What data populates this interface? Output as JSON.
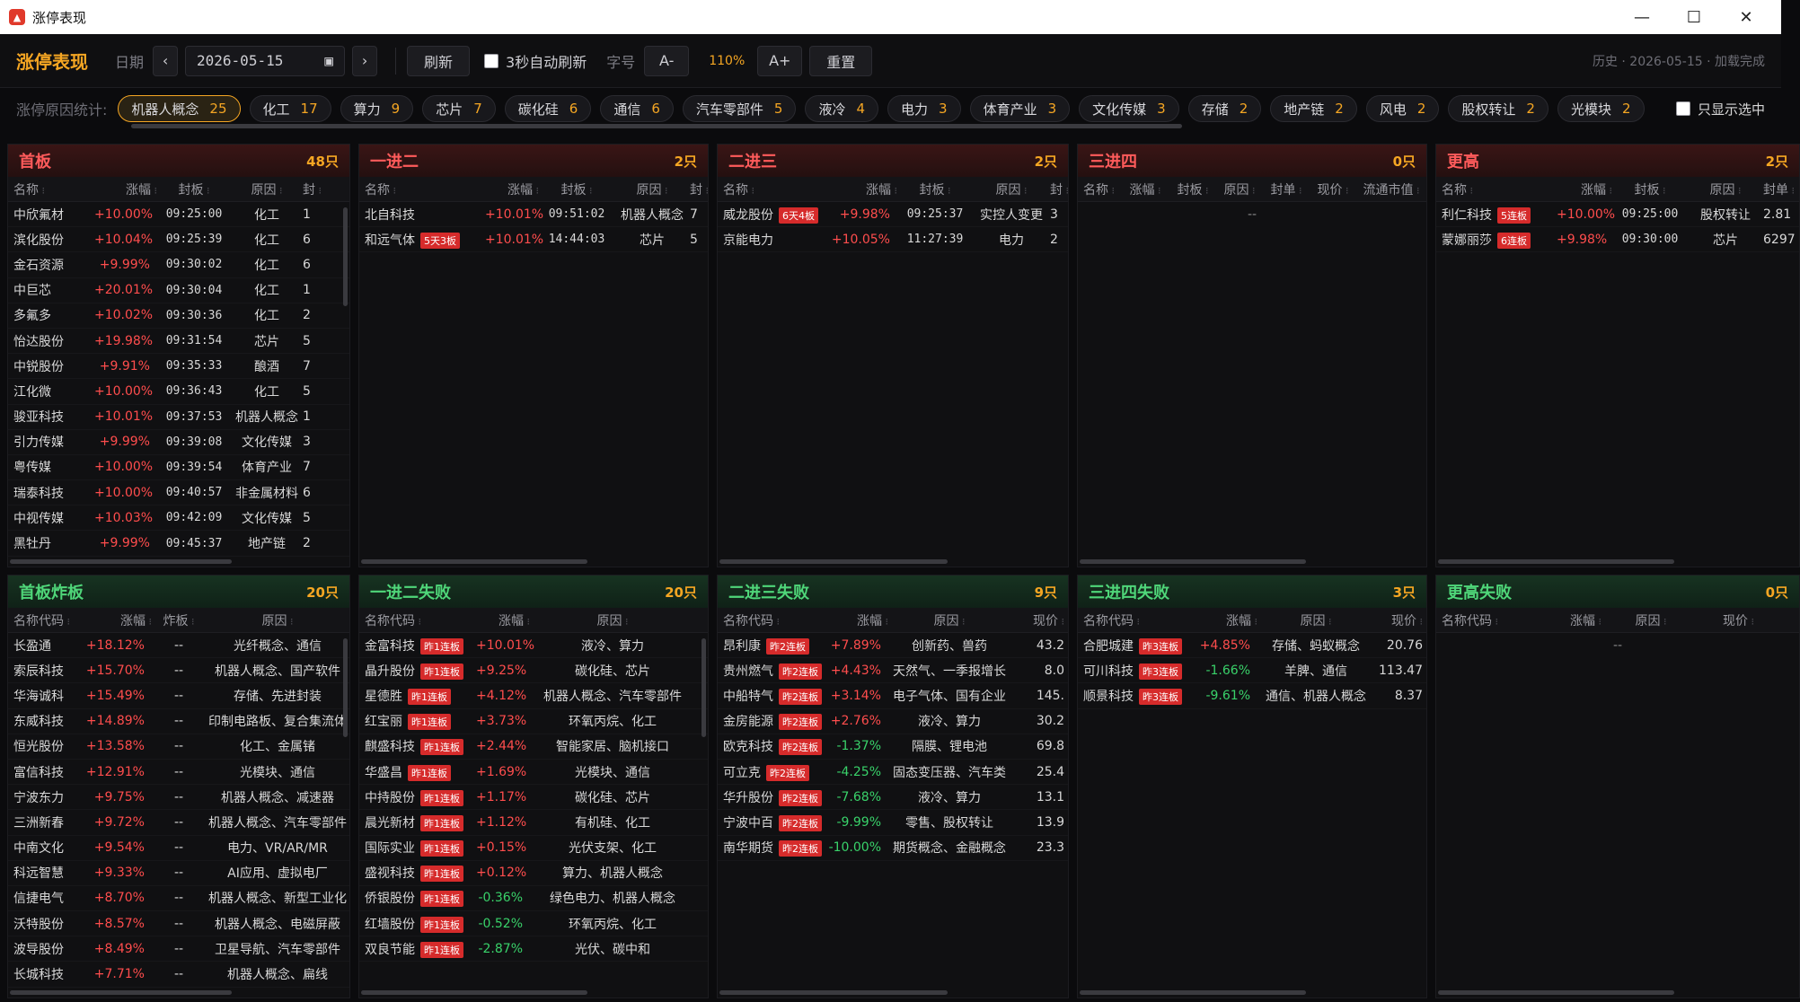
{
  "window": {
    "title": "涨停表现",
    "min": "—",
    "max": "☐",
    "close": "✕"
  },
  "toolbar": {
    "brand": "涨停表现",
    "date_label": "日期",
    "prev": "‹",
    "date": "2026-05-15",
    "next": "›",
    "refresh": "刷新",
    "auto_refresh": "3秒自动刷新",
    "font_label": "字号",
    "font_minus": "A-",
    "zoom": "110%",
    "font_plus": "A+",
    "reset": "重置",
    "history": "历史 · 2026-05-15 · 加载完成"
  },
  "reasons": {
    "label": "涨停原因统计:",
    "only_selected": "只显示选中",
    "chips": [
      {
        "name": "机器人概念",
        "count": "25",
        "active": true
      },
      {
        "name": "化工",
        "count": "17"
      },
      {
        "name": "算力",
        "count": "9"
      },
      {
        "name": "芯片",
        "count": "7"
      },
      {
        "name": "碳化硅",
        "count": "6"
      },
      {
        "name": "通信",
        "count": "6"
      },
      {
        "name": "汽车零部件",
        "count": "5"
      },
      {
        "name": "液冷",
        "count": "4"
      },
      {
        "name": "电力",
        "count": "3"
      },
      {
        "name": "体育产业",
        "count": "3"
      },
      {
        "name": "文化传媒",
        "count": "3"
      },
      {
        "name": "存储",
        "count": "2"
      },
      {
        "name": "地产链",
        "count": "2"
      },
      {
        "name": "风电",
        "count": "2"
      },
      {
        "name": "股权转让",
        "count": "2"
      },
      {
        "name": "光模块",
        "count": "2"
      }
    ]
  },
  "panels": [
    {
      "id": "shouban",
      "title": "首板",
      "count": "48只",
      "theme": "red",
      "cols": [
        {
          "t": "名称",
          "w": 96,
          "a": "l"
        },
        {
          "t": "涨幅",
          "w": 70,
          "a": "r"
        },
        {
          "t": "封板",
          "w": 82,
          "a": "c"
        },
        {
          "t": "原因",
          "w": 80,
          "a": "c"
        },
        {
          "t": "封",
          "w": 30,
          "a": "l"
        }
      ],
      "rows": [
        [
          "中欣氟材",
          "+10.00%",
          "09:25:00",
          "化工",
          "1"
        ],
        [
          "滨化股份",
          "+10.04%",
          "09:25:39",
          "化工",
          "6"
        ],
        [
          "金石资源",
          "+9.99%",
          "09:30:02",
          "化工",
          "6"
        ],
        [
          "中巨芯",
          "+20.01%",
          "09:30:04",
          "化工",
          "1"
        ],
        [
          "多氟多",
          "+10.02%",
          "09:30:36",
          "化工",
          "2"
        ],
        [
          "怡达股份",
          "+19.98%",
          "09:31:54",
          "芯片",
          "5"
        ],
        [
          "中锐股份",
          "+9.91%",
          "09:35:33",
          "酿酒",
          "7"
        ],
        [
          "江化微",
          "+10.00%",
          "09:36:43",
          "化工",
          "5"
        ],
        [
          "骏亚科技",
          "+10.01%",
          "09:37:53",
          "机器人概念",
          "1"
        ],
        [
          "引力传媒",
          "+9.99%",
          "09:39:08",
          "文化传媒",
          "3"
        ],
        [
          "粤传媒",
          "+10.00%",
          "09:39:54",
          "体育产业",
          "7"
        ],
        [
          "瑞泰科技",
          "+10.00%",
          "09:40:57",
          "非金属材料",
          "6"
        ],
        [
          "中视传媒",
          "+10.03%",
          "09:42:09",
          "文化传媒",
          "5"
        ],
        [
          "黑牡丹",
          "+9.99%",
          "09:45:37",
          "地产链",
          "2"
        ]
      ]
    },
    {
      "id": "yijiner",
      "title": "一进二",
      "count": "2只",
      "theme": "red",
      "cols": [
        {
          "t": "名称",
          "w": 140,
          "a": "l"
        },
        {
          "t": "涨幅",
          "w": 60,
          "a": "r"
        },
        {
          "t": "封板",
          "w": 84,
          "a": "c"
        },
        {
          "t": "原因",
          "w": 84,
          "a": "c"
        },
        {
          "t": "封",
          "w": 20,
          "a": "l"
        }
      ],
      "rows": [
        [
          "北自科技",
          "+10.01%",
          "09:51:02",
          "机器人概念",
          "7"
        ],
        [
          "和远气体|5天3板",
          "+10.01%",
          "14:44:03",
          "芯片",
          "5"
        ]
      ]
    },
    {
      "id": "erjinsan",
      "title": "二进三",
      "count": "2只",
      "theme": "red",
      "cols": [
        {
          "t": "名称",
          "w": 126,
          "a": "l"
        },
        {
          "t": "涨幅",
          "w": 74,
          "a": "r"
        },
        {
          "t": "封板",
          "w": 84,
          "a": "c"
        },
        {
          "t": "原因",
          "w": 86,
          "a": "c"
        },
        {
          "t": "封",
          "w": 20,
          "a": "l"
        }
      ],
      "rows": [
        [
          "威龙股份|6天4板",
          "+9.98%",
          "09:25:37",
          "实控人变更",
          "3"
        ],
        [
          "京能电力",
          "+10.05%",
          "11:27:39",
          "电力",
          "2"
        ]
      ]
    },
    {
      "id": "sanjinsi",
      "title": "三进四",
      "count": "0只",
      "theme": "red",
      "cols": [
        {
          "t": "名称",
          "w": 48,
          "a": "l"
        },
        {
          "t": "涨幅",
          "w": 54,
          "a": "c"
        },
        {
          "t": "封板",
          "w": 52,
          "a": "c"
        },
        {
          "t": "原因",
          "w": 52,
          "a": "c"
        },
        {
          "t": "封单",
          "w": 52,
          "a": "c"
        },
        {
          "t": "现价",
          "w": 52,
          "a": "c"
        },
        {
          "t": "流通市值",
          "w": 78,
          "a": "c"
        }
      ],
      "rows": [],
      "empty": "--"
    },
    {
      "id": "genggao",
      "title": "更高",
      "count": "2只",
      "theme": "red",
      "cols": [
        {
          "t": "名称",
          "w": 134,
          "a": "l"
        },
        {
          "t": "涨幅",
          "w": 62,
          "a": "r"
        },
        {
          "t": "封板",
          "w": 84,
          "a": "c"
        },
        {
          "t": "原因",
          "w": 84,
          "a": "c"
        },
        {
          "t": "封单",
          "w": 40,
          "a": "l"
        }
      ],
      "rows": [
        [
          "利仁科技|5连板",
          "+10.00%",
          "09:25:00",
          "股权转让",
          "2.81"
        ],
        [
          "蒙娜丽莎|6连板",
          "+9.98%",
          "09:30:00",
          "芯片",
          "6297"
        ]
      ]
    },
    {
      "id": "shoubanzhaban",
      "title": "首板炸板",
      "count": "20只",
      "theme": "green",
      "cols": [
        {
          "t": "名称代码",
          "w": 74,
          "a": "l"
        },
        {
          "t": "涨幅",
          "w": 86,
          "a": "r"
        },
        {
          "t": "炸板",
          "w": 60,
          "a": "c"
        },
        {
          "t": "原因",
          "w": 160,
          "a": "c"
        }
      ],
      "rows": [
        [
          "长盈通",
          "+18.12%",
          "--",
          "光纤概念、通信"
        ],
        [
          "索辰科技",
          "+15.70%",
          "--",
          "机器人概念、国产软件"
        ],
        [
          "华海诚科",
          "+15.49%",
          "--",
          "存储、先进封装"
        ],
        [
          "东威科技",
          "+14.89%",
          "--",
          "印制电路板、复合集流体"
        ],
        [
          "恒光股份",
          "+13.58%",
          "--",
          "化工、金属锗"
        ],
        [
          "富信科技",
          "+12.91%",
          "--",
          "光模块、通信"
        ],
        [
          "宁波东力",
          "+9.75%",
          "--",
          "机器人概念、减速器"
        ],
        [
          "三洲新春",
          "+9.72%",
          "--",
          "机器人概念、汽车零部件"
        ],
        [
          "中南文化",
          "+9.54%",
          "--",
          "电力、VR/AR/MR"
        ],
        [
          "科远智慧",
          "+9.33%",
          "--",
          "AI应用、虚拟电厂"
        ],
        [
          "信捷电气",
          "+8.70%",
          "--",
          "机器人概念、新型工业化"
        ],
        [
          "沃特股份",
          "+8.57%",
          "--",
          "机器人概念、电磁屏蔽"
        ],
        [
          "波导股份",
          "+8.49%",
          "--",
          "卫星导航、汽车零部件"
        ],
        [
          "长城科技",
          "+7.71%",
          "--",
          "机器人概念、扁线"
        ]
      ]
    },
    {
      "id": "yijinershibai",
      "title": "一进二失败",
      "count": "20只",
      "theme": "green",
      "cols": [
        {
          "t": "名称代码",
          "w": 130,
          "a": "l"
        },
        {
          "t": "涨幅",
          "w": 60,
          "a": "r"
        },
        {
          "t": "原因",
          "w": 184,
          "a": "c"
        }
      ],
      "rows": [
        [
          "金富科技|昨1连板",
          "+10.01%",
          "液冷、算力"
        ],
        [
          "晶升股份|昨1连板",
          "+9.25%",
          "碳化硅、芯片"
        ],
        [
          "星德胜|昨1连板",
          "+4.12%",
          "机器人概念、汽车零部件"
        ],
        [
          "红宝丽|昨1连板",
          "+3.73%",
          "环氧丙烷、化工"
        ],
        [
          "麒盛科技|昨1连板",
          "+2.44%",
          "智能家居、脑机接口"
        ],
        [
          "华盛昌|昨1连板",
          "+1.69%",
          "光模块、通信"
        ],
        [
          "中持股份|昨1连板",
          "+1.17%",
          "碳化硅、芯片"
        ],
        [
          "晨光新材|昨1连板",
          "+1.12%",
          "有机硅、化工"
        ],
        [
          "国际实业|昨1连板",
          "+0.15%",
          "光伏支架、化工"
        ],
        [
          "盛视科技|昨1连板",
          "+0.12%",
          "算力、机器人概念"
        ],
        [
          "侨银股份|昨1连板",
          "-0.36%",
          "绿色电力、机器人概念"
        ],
        [
          "红墙股份|昨1连板",
          "-0.52%",
          "环氧丙烷、化工"
        ],
        [
          "双良节能|昨1连板",
          "-2.87%",
          "光伏、碳中和"
        ]
      ]
    },
    {
      "id": "erjinsanshibai",
      "title": "二进三失败",
      "count": "9只",
      "theme": "green",
      "cols": [
        {
          "t": "名称代码",
          "w": 120,
          "a": "l"
        },
        {
          "t": "涨幅",
          "w": 70,
          "a": "r"
        },
        {
          "t": "原因",
          "w": 136,
          "a": "c"
        },
        {
          "t": "现价",
          "w": 60,
          "a": "r"
        }
      ],
      "rows": [
        [
          "昂利康|昨2连板",
          "+7.89%",
          "创新药、兽药",
          "43.2"
        ],
        [
          "贵州燃气|昨2连板",
          "+4.43%",
          "天然气、一季报增长",
          "8.0"
        ],
        [
          "中船特气|昨2连板",
          "+3.14%",
          "电子气体、国有企业",
          "145."
        ],
        [
          "金房能源|昨2连板",
          "+2.76%",
          "液冷、算力",
          "30.2"
        ],
        [
          "欧克科技|昨2连板",
          "-1.37%",
          "隔膜、锂电池",
          "69.8"
        ],
        [
          "可立克|昨2连板",
          "-4.25%",
          "固态变压器、汽车类",
          "25.4"
        ],
        [
          "华升股份|昨2连板",
          "-7.68%",
          "液冷、算力",
          "13.1"
        ],
        [
          "宁波中百|昨2连板",
          "-9.99%",
          "零售、股权转让",
          "13.9"
        ],
        [
          "南华期货|昨2连板",
          "-10.00%",
          "期货概念、金融概念",
          "23.3"
        ]
      ]
    },
    {
      "id": "sanjinsishibai",
      "title": "三进四失败",
      "count": "3只",
      "theme": "green",
      "cols": [
        {
          "t": "名称代码",
          "w": 130,
          "a": "l"
        },
        {
          "t": "涨幅",
          "w": 70,
          "a": "r"
        },
        {
          "t": "原因",
          "w": 130,
          "a": "c"
        },
        {
          "t": "现价",
          "w": 54,
          "a": "r"
        }
      ],
      "rows": [
        [
          "合肥城建|昨3连板",
          "+4.85%",
          "存储、蚂蚁概念",
          "20.76"
        ],
        [
          "可川科技|昨3连板",
          "-1.66%",
          "羊脾、通信",
          "113.47"
        ],
        [
          "顺景科技|昨3连板",
          "-9.61%",
          "通信、机器人概念",
          "8.37"
        ]
      ]
    },
    {
      "id": "genggaoshibai",
      "title": "更高失败",
      "count": "0只",
      "theme": "green",
      "cols": [
        {
          "t": "名称代码",
          "w": 110,
          "a": "l"
        },
        {
          "t": "涨幅",
          "w": 74,
          "a": "r"
        },
        {
          "t": "原因",
          "w": 110,
          "a": "c"
        },
        {
          "t": "现价",
          "w": 60,
          "a": "r"
        }
      ],
      "rows": [],
      "empty": "--"
    }
  ]
}
